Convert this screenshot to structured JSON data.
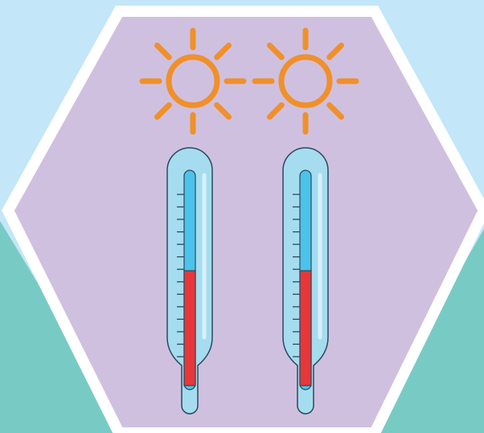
{
  "colors": {
    "sky": "#c3e6f8",
    "ground": "#78cbc4",
    "hexagon_fill": "#d0c0e0",
    "hexagon_border": "#ffffff",
    "sun": "#f0902a",
    "thermometer_glass": "#a6dcef",
    "thermometer_outline": "#2b4a5c",
    "mercury": "#e8373a",
    "bore": "#4cc3ea"
  },
  "illustration": {
    "suns": [
      {
        "name": "sun-left-icon"
      },
      {
        "name": "sun-right-icon"
      }
    ],
    "thermometers": [
      {
        "name": "thermometer-left",
        "mercury_level": 0.55,
        "tick_count": 14
      },
      {
        "name": "thermometer-right",
        "mercury_level": 0.55,
        "tick_count": 14
      }
    ]
  }
}
